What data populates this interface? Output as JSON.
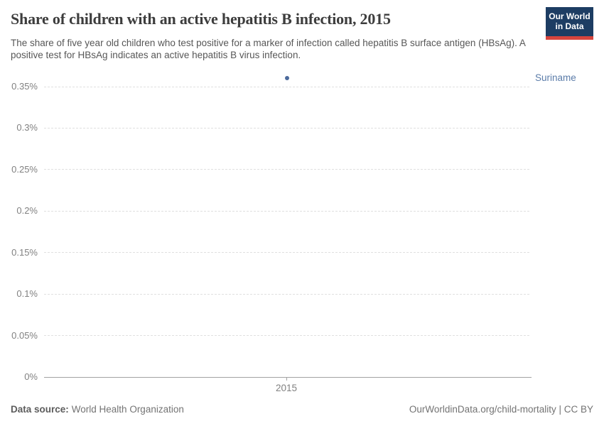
{
  "header": {
    "title": "Share of children with an active hepatitis B infection, 2015",
    "subtitle": "The share of five year old children who test positive for a marker of infection called hepatitis B surface antigen (HBsAg). A positive test for HBsAg indicates an active hepatitis B virus infection.",
    "logo": {
      "line1": "Our World",
      "line2": "in Data"
    }
  },
  "chart_data": {
    "type": "scatter",
    "title": "Share of children with an active hepatitis B infection, 2015",
    "x": [
      2015
    ],
    "x_tick_label": "2015",
    "series": [
      {
        "name": "Suriname",
        "values": [
          0.36
        ],
        "color": "#4C6A9C"
      }
    ],
    "xlabel": "",
    "ylabel": "",
    "unit": "%",
    "ylim": [
      0,
      0.36
    ],
    "yticks": [
      {
        "value": 0,
        "label": "0%"
      },
      {
        "value": 0.05,
        "label": "0.05%"
      },
      {
        "value": 0.1,
        "label": "0.1%"
      },
      {
        "value": 0.15,
        "label": "0.15%"
      },
      {
        "value": 0.2,
        "label": "0.2%"
      },
      {
        "value": 0.25,
        "label": "0.25%"
      },
      {
        "value": 0.3,
        "label": "0.3%"
      },
      {
        "value": 0.35,
        "label": "0.35%"
      }
    ],
    "grid": "horizontal-dashed",
    "legend_position": "entity label right of point"
  },
  "footer": {
    "data_source_label": "Data source:",
    "data_source_value": "World Health Organization",
    "attribution": "OurWorldinData.org/child-mortality | CC BY"
  },
  "colors": {
    "accent": "#4C6A9C",
    "entity_label": "#5b7ca9",
    "logo_background": "#1d3d63",
    "logo_stripe": "#d7453d",
    "gridline": "#e0e0e0",
    "axis": "#a3a3a3",
    "title_text": "#3d3d3d",
    "subtitle_text": "#575757",
    "tick_text": "#818181"
  }
}
